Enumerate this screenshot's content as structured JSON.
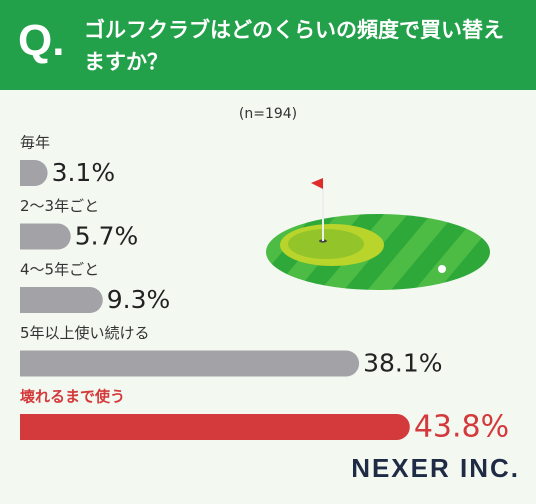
{
  "chart_data": {
    "type": "bar",
    "orientation": "horizontal",
    "question_mark": "Q.",
    "title": "ゴルフクラブはどのくらいの頻度で買い替えますか？",
    "subtitle": "(n=194)",
    "categories": [
      "毎年",
      "2〜3年ごと",
      "4〜5年ごと",
      "5年以上使い続ける",
      "壊れるまで使う"
    ],
    "values": [
      3.1,
      5.7,
      9.3,
      38.1,
      43.8
    ],
    "value_labels": [
      "3.1%",
      "5.7%",
      "9.3%",
      "38.1%",
      "43.8%"
    ],
    "colors": [
      "#a3a3a7",
      "#a3a3a7",
      "#a3a3a7",
      "#a3a3a7",
      "#d4393b"
    ],
    "label_colors": [
      "#333333",
      "#333333",
      "#333333",
      "#333333",
      "#d4393b"
    ],
    "brand": "NEXER INC."
  }
}
